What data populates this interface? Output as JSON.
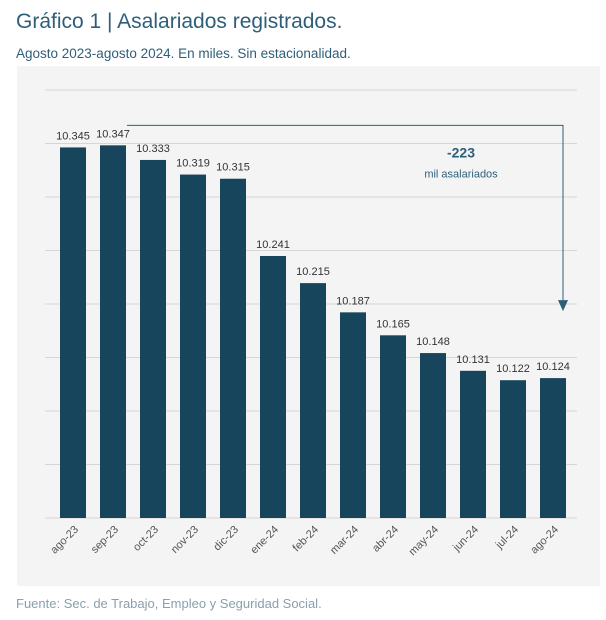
{
  "title": "Gráfico 1 | Asalariados registrados.",
  "subtitle": "Agosto 2023-agosto 2024. En miles. Sin estacionalidad.",
  "source": "Fuente: Sec. de Trabajo, Empleo y Seguridad Social.",
  "colors": {
    "bar": "#17455b",
    "accent": "#2e5f7a",
    "grid": "#d6d6d6",
    "panel": "#f4f4f4"
  },
  "chart_data": {
    "type": "bar",
    "categories": [
      "ago-23",
      "sep-23",
      "oct-23",
      "nov-23",
      "dic-23",
      "ene-24",
      "feb-24",
      "mar-24",
      "abr-24",
      "may-24",
      "jun-24",
      "jul-24",
      "ago-24"
    ],
    "values": [
      10345,
      10347,
      10333,
      10319,
      10315,
      10241,
      10215,
      10187,
      10165,
      10148,
      10131,
      10122,
      10124
    ],
    "value_labels": [
      "10.345",
      "10.347",
      "10.333",
      "10.319",
      "10.315",
      "10.241",
      "10.215",
      "10.187",
      "10.165",
      "10.148",
      "10.131",
      "10.122",
      "10.124"
    ],
    "ylim": [
      9990,
      10400
    ],
    "grid": true,
    "annotation": {
      "value": "-223",
      "text": "mil asalariados"
    }
  }
}
